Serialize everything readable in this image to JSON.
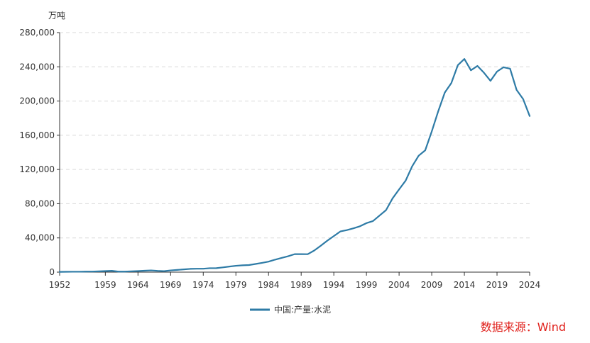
{
  "source_note": "数据来源：Wind",
  "chart_data": {
    "type": "line",
    "ylabel": "万吨",
    "xlim": [
      1952,
      2024
    ],
    "ylim": [
      0,
      280000
    ],
    "x_ticks": [
      1952,
      1959,
      1964,
      1969,
      1974,
      1979,
      1984,
      1989,
      1994,
      1999,
      2004,
      2009,
      2014,
      2019,
      2024
    ],
    "y_ticks": [
      0,
      40000,
      80000,
      120000,
      160000,
      200000,
      240000,
      280000
    ],
    "y_tick_labels": [
      "0",
      "40,000",
      "80,000",
      "120,000",
      "160,000",
      "200,000",
      "240,000",
      "280,000"
    ],
    "grid": true,
    "legend_position": "bottom-center",
    "colors": {
      "series": "#2e7ba6",
      "grid": "#d9d9d9",
      "axis": "#333333"
    },
    "series": [
      {
        "name": "中国:产量:水泥",
        "x": [
          1952,
          1953,
          1954,
          1955,
          1956,
          1957,
          1958,
          1959,
          1960,
          1961,
          1962,
          1963,
          1964,
          1965,
          1966,
          1967,
          1968,
          1969,
          1970,
          1971,
          1972,
          1973,
          1974,
          1975,
          1976,
          1977,
          1978,
          1979,
          1980,
          1981,
          1982,
          1983,
          1984,
          1985,
          1986,
          1987,
          1988,
          1989,
          1990,
          1991,
          1992,
          1993,
          1994,
          1995,
          1996,
          1997,
          1998,
          1999,
          2000,
          2001,
          2002,
          2003,
          2004,
          2005,
          2006,
          2007,
          2008,
          2009,
          2010,
          2011,
          2012,
          2013,
          2014,
          2015,
          2016,
          2017,
          2018,
          2019,
          2020,
          2021,
          2022,
          2023,
          2024
        ],
        "values": [
          286,
          388,
          460,
          450,
          639,
          686,
          930,
          1227,
          1565,
          621,
          600,
          1000,
          1300,
          1634,
          2015,
          1500,
          1200,
          2000,
          2575,
          3200,
          3800,
          4000,
          4000,
          4626,
          4670,
          5565,
          6524,
          7390,
          7986,
          8290,
          9520,
          10825,
          12302,
          14595,
          16633,
          18625,
          21014,
          21029,
          20971,
          25261,
          30822,
          36788,
          42118,
          47561,
          49119,
          51174,
          53600,
          57300,
          59700,
          66104,
          72500,
          86208,
          96682,
          106885,
          123676,
          136117,
          142356,
          164398,
          188191,
          209926,
          220984,
          241924,
          249207,
          235919,
          241031,
          233084,
          223610,
          234431,
          239500,
          237800,
          213000,
          202300,
          182500
        ]
      }
    ]
  }
}
